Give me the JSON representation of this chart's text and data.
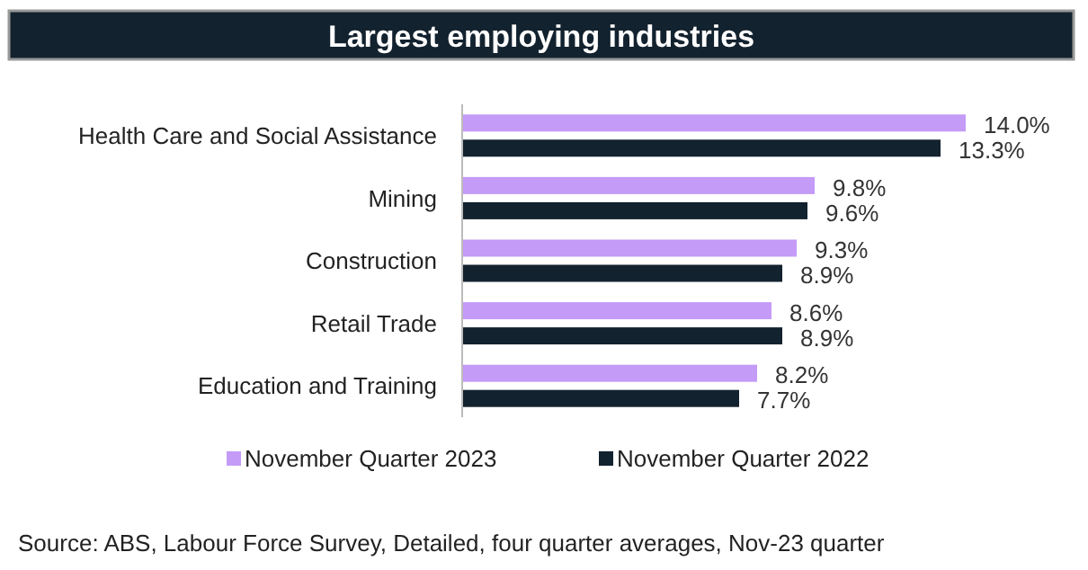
{
  "chart_data": {
    "type": "bar",
    "orientation": "horizontal",
    "title": "Largest employing industries",
    "categories": [
      "Health Care and Social Assistance",
      "Mining",
      "Construction",
      "Retail Trade",
      "Education and Training"
    ],
    "series": [
      {
        "name": "November Quarter 2023",
        "color": "#c49bf7",
        "values": [
          14.0,
          9.8,
          9.3,
          8.6,
          8.2
        ],
        "value_labels": [
          "14.0%",
          "9.8%",
          "9.3%",
          "8.6%",
          "8.2%"
        ]
      },
      {
        "name": "November Quarter 2022",
        "color": "#13222f",
        "values": [
          13.3,
          9.6,
          8.9,
          8.9,
          7.7
        ],
        "value_labels": [
          "13.3%",
          "9.6%",
          "8.9%",
          "8.9%",
          "7.7%"
        ]
      }
    ],
    "legend": "bottom",
    "annotations": [
      "Source: ABS, Labour Force Survey, Detailed, four quarter averages, Nov-23 quarter"
    ]
  }
}
